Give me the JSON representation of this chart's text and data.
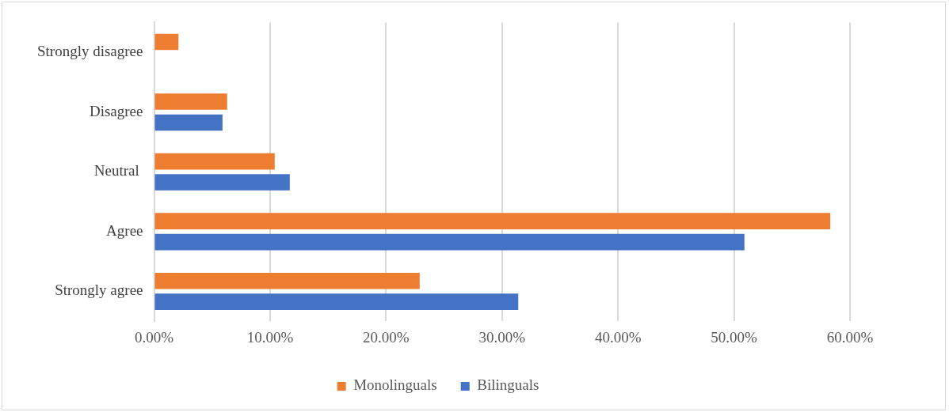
{
  "chart_data": {
    "type": "bar",
    "orientation": "horizontal",
    "categories": [
      "Strongly disagree",
      "Disagree",
      "Neutral ",
      "Agree",
      "Strongly agree"
    ],
    "series": [
      {
        "name": "Monolinguals",
        "color": "#ed7d31",
        "values": [
          2.1,
          6.3,
          10.4,
          58.3,
          22.9
        ]
      },
      {
        "name": "Bilinguals",
        "color": "#4472c4",
        "values": [
          0,
          5.9,
          11.7,
          50.9,
          31.4
        ]
      }
    ],
    "xlim": [
      0,
      60
    ],
    "xticks": [
      {
        "value": 0,
        "label": "0.00%"
      },
      {
        "value": 10,
        "label": "10.00%"
      },
      {
        "value": 20,
        "label": "20.00%"
      },
      {
        "value": 30,
        "label": "30.00%"
      },
      {
        "value": 40,
        "label": "40.00%"
      },
      {
        "value": 50,
        "label": "50.00%"
      },
      {
        "value": 60,
        "label": "60.00%"
      }
    ],
    "grid": "x",
    "legend": "bottom"
  }
}
